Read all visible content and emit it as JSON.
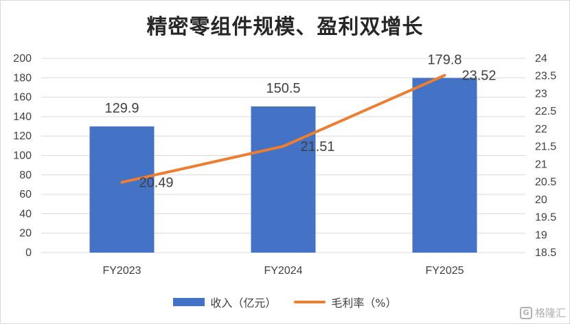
{
  "chart_data": {
    "type": "bar",
    "title": "精密零组件规模、盈利双增长",
    "categories": [
      "FY2023",
      "FY2024",
      "FY2025"
    ],
    "series": [
      {
        "name": "收入（亿元）",
        "type": "bar",
        "axis": "left",
        "values": [
          129.9,
          150.5,
          179.8
        ],
        "color": "#4472c4"
      },
      {
        "name": "毛利率（%）",
        "type": "line",
        "axis": "right",
        "values": [
          20.49,
          21.51,
          23.52
        ],
        "color": "#ed7d31"
      }
    ],
    "left_axis": {
      "min": 0,
      "max": 200,
      "step": 20,
      "ticks": [
        "0",
        "20",
        "40",
        "60",
        "80",
        "100",
        "120",
        "140",
        "160",
        "180",
        "200"
      ]
    },
    "right_axis": {
      "min": 18.5,
      "max": 24,
      "step": 0.5,
      "ticks": [
        "18.5",
        "19",
        "19.5",
        "20",
        "20.5",
        "21",
        "21.5",
        "22",
        "22.5",
        "23",
        "23.5",
        "24"
      ]
    },
    "bar_labels": [
      "129.9",
      "150.5",
      "179.8"
    ],
    "line_labels": [
      "20.49",
      "21.51",
      "23.52"
    ],
    "grid": true,
    "legend_position": "bottom"
  },
  "watermark": {
    "text": "格隆汇",
    "icon": "glh-logo-icon"
  }
}
